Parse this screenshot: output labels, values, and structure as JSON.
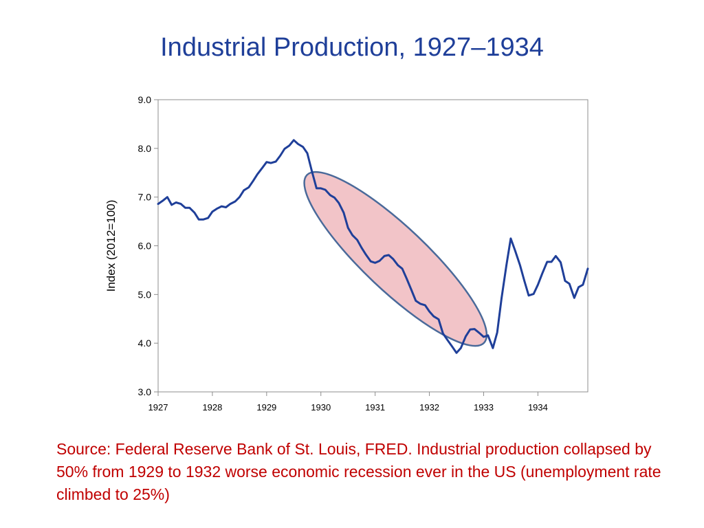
{
  "slide": {
    "title": "Industrial Production, 1927–1934",
    "caption": "Source:  Federal Reserve Bank of St. Louis, FRED. Industrial production collapsed by 50% from 1929 to 1932 worse economic recession ever in the US (unemployment rate climbed to 25%)"
  },
  "colors": {
    "title": "#1f3f99",
    "caption": "#c00000",
    "line": "#1f3f99",
    "highlight_fill": "#f2c4c8",
    "highlight_stroke": "#4a6a9a"
  },
  "chart_data": {
    "type": "line",
    "title": "",
    "xlabel": "",
    "ylabel": "Index (2012=100)",
    "ylim": [
      3.0,
      9.0
    ],
    "yticks": [
      "3.0",
      "4.0",
      "5.0",
      "6.0",
      "7.0",
      "8.0",
      "9.0"
    ],
    "xticks": [
      "1927",
      "1928",
      "1929",
      "1930",
      "1931",
      "1932",
      "1933",
      "1934"
    ],
    "xlim": [
      1927.0,
      1934.92
    ],
    "grid": false,
    "legend": "none",
    "highlight": {
      "label": "",
      "from": 1930.0,
      "to": 1932.8
    },
    "series": [
      {
        "x": [
          1927.0,
          1927.08,
          1927.17,
          1927.25,
          1927.33,
          1927.42,
          1927.5,
          1927.58,
          1927.67,
          1927.75,
          1927.83,
          1927.92,
          1928.0,
          1928.08,
          1928.17,
          1928.25,
          1928.33,
          1928.42,
          1928.5,
          1928.58,
          1928.67,
          1928.75,
          1928.83,
          1928.92,
          1929.0,
          1929.08,
          1929.17,
          1929.25,
          1929.33,
          1929.42,
          1929.5,
          1929.58,
          1929.67,
          1929.75,
          1929.83,
          1929.92,
          1930.0,
          1930.08,
          1930.17,
          1930.25,
          1930.33,
          1930.42,
          1930.5,
          1930.58,
          1930.67,
          1930.75,
          1930.83,
          1930.92,
          1931.0,
          1931.08,
          1931.17,
          1931.25,
          1931.33,
          1931.42,
          1931.5,
          1931.58,
          1931.67,
          1931.75,
          1931.83,
          1931.92,
          1932.0,
          1932.08,
          1932.17,
          1932.25,
          1932.33,
          1932.42,
          1932.5,
          1932.58,
          1932.67,
          1932.75,
          1932.83,
          1932.92,
          1933.0,
          1933.08,
          1933.17,
          1933.25,
          1933.33,
          1933.42,
          1933.5,
          1933.58,
          1933.67,
          1933.75,
          1933.83,
          1933.92,
          1934.0,
          1934.08,
          1934.17,
          1934.25,
          1934.33,
          1934.42,
          1934.5,
          1934.58,
          1934.67,
          1934.75,
          1934.83,
          1934.92
        ],
        "values": [
          6.86,
          6.92,
          7.0,
          6.84,
          6.89,
          6.86,
          6.78,
          6.78,
          6.68,
          6.54,
          6.54,
          6.57,
          6.7,
          6.76,
          6.81,
          6.79,
          6.86,
          6.91,
          7.0,
          7.14,
          7.2,
          7.33,
          7.47,
          7.6,
          7.72,
          7.7,
          7.73,
          7.85,
          7.99,
          8.06,
          8.17,
          8.09,
          8.03,
          7.9,
          7.55,
          7.18,
          7.18,
          7.15,
          7.04,
          6.99,
          6.88,
          6.68,
          6.37,
          6.22,
          6.12,
          5.96,
          5.82,
          5.68,
          5.65,
          5.69,
          5.79,
          5.81,
          5.73,
          5.6,
          5.53,
          5.33,
          5.09,
          4.87,
          4.81,
          4.78,
          4.65,
          4.55,
          4.49,
          4.2,
          4.07,
          3.93,
          3.8,
          3.9,
          4.14,
          4.28,
          4.29,
          4.21,
          4.13,
          4.16,
          3.9,
          4.22,
          4.92,
          5.6,
          6.15,
          5.9,
          5.6,
          5.28,
          4.98,
          5.01,
          5.2,
          5.43,
          5.67,
          5.67,
          5.79,
          5.66,
          5.28,
          5.22,
          4.93,
          5.15,
          5.2,
          5.53
        ]
      }
    ]
  }
}
